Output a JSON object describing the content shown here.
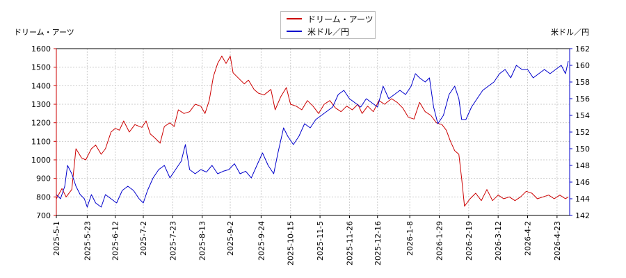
{
  "chart_data": {
    "type": "line",
    "left_axis_title": "ドリーム・アーツ",
    "right_axis_title": "米ドル／円",
    "x_ticks": [
      "2025-5-1",
      "2025-5-23",
      "2025-6-12",
      "2025-7-2",
      "2025-7-23",
      "2025-8-13",
      "2025-9-2",
      "2025-9-24",
      "2025-10-15",
      "2025-11-5",
      "2025-11-26",
      "2025-12-16",
      "2026-1-8",
      "2026-1-29",
      "2026-2-19",
      "2026-3-12",
      "2026-4-2",
      "2026-4-23"
    ],
    "x_range": [
      "2025-5-1",
      "2026-5-2"
    ],
    "y_left": {
      "min": 700,
      "max": 1600,
      "ticks": [
        700,
        800,
        900,
        1000,
        1100,
        1200,
        1300,
        1400,
        1500,
        1600
      ]
    },
    "y_right": {
      "min": 142,
      "max": 162,
      "ticks": [
        142,
        144,
        146,
        148,
        150,
        152,
        154,
        156,
        158,
        160,
        162
      ]
    },
    "grid": true,
    "legend_position": "top-center",
    "series": [
      {
        "name": "ドリーム・アーツ",
        "axis": "left",
        "color": "#cc0000",
        "points": [
          [
            "2025-5-1",
            790
          ],
          [
            "2025-5-5",
            845
          ],
          [
            "2025-5-8",
            800
          ],
          [
            "2025-5-12",
            840
          ],
          [
            "2025-5-15",
            1060
          ],
          [
            "2025-5-19",
            1010
          ],
          [
            "2025-5-22",
            1000
          ],
          [
            "2025-5-26",
            1060
          ],
          [
            "2025-5-29",
            1080
          ],
          [
            "2025-6-2",
            1030
          ],
          [
            "2025-6-5",
            1060
          ],
          [
            "2025-6-9",
            1150
          ],
          [
            "2025-6-12",
            1170
          ],
          [
            "2025-6-15",
            1160
          ],
          [
            "2025-6-18",
            1210
          ],
          [
            "2025-6-22",
            1150
          ],
          [
            "2025-6-26",
            1190
          ],
          [
            "2025-7-1",
            1175
          ],
          [
            "2025-7-4",
            1210
          ],
          [
            "2025-7-7",
            1140
          ],
          [
            "2025-7-10",
            1120
          ],
          [
            "2025-7-14",
            1090
          ],
          [
            "2025-7-17",
            1180
          ],
          [
            "2025-7-21",
            1200
          ],
          [
            "2025-7-24",
            1180
          ],
          [
            "2025-7-27",
            1270
          ],
          [
            "2025-7-31",
            1250
          ],
          [
            "2025-8-4",
            1260
          ],
          [
            "2025-8-8",
            1300
          ],
          [
            "2025-8-12",
            1290
          ],
          [
            "2025-8-15",
            1250
          ],
          [
            "2025-8-18",
            1320
          ],
          [
            "2025-8-21",
            1450
          ],
          [
            "2025-8-24",
            1520
          ],
          [
            "2025-8-27",
            1560
          ],
          [
            "2025-8-30",
            1520
          ],
          [
            "2025-9-2",
            1560
          ],
          [
            "2025-9-4",
            1470
          ],
          [
            "2025-9-8",
            1440
          ],
          [
            "2025-9-12",
            1410
          ],
          [
            "2025-9-15",
            1430
          ],
          [
            "2025-9-19",
            1380
          ],
          [
            "2025-9-22",
            1360
          ],
          [
            "2025-9-26",
            1350
          ],
          [
            "2025-10-1",
            1380
          ],
          [
            "2025-10-4",
            1270
          ],
          [
            "2025-10-8",
            1340
          ],
          [
            "2025-10-12",
            1390
          ],
          [
            "2025-10-15",
            1300
          ],
          [
            "2025-10-19",
            1290
          ],
          [
            "2025-10-23",
            1270
          ],
          [
            "2025-10-27",
            1320
          ],
          [
            "2025-10-31",
            1290
          ],
          [
            "2025-11-4",
            1250
          ],
          [
            "2025-11-8",
            1300
          ],
          [
            "2025-11-12",
            1320
          ],
          [
            "2025-11-16",
            1280
          ],
          [
            "2025-11-20",
            1260
          ],
          [
            "2025-11-24",
            1290
          ],
          [
            "2025-11-28",
            1270
          ],
          [
            "2025-12-2",
            1300
          ],
          [
            "2025-12-5",
            1250
          ],
          [
            "2025-12-9",
            1290
          ],
          [
            "2025-12-13",
            1260
          ],
          [
            "2025-12-17",
            1320
          ],
          [
            "2025-12-21",
            1300
          ],
          [
            "2025-12-26",
            1330
          ],
          [
            "2025-12-30",
            1310
          ],
          [
            "2026-1-3",
            1280
          ],
          [
            "2026-1-7",
            1230
          ],
          [
            "2026-1-11",
            1220
          ],
          [
            "2026-1-15",
            1310
          ],
          [
            "2026-1-19",
            1260
          ],
          [
            "2026-1-23",
            1240
          ],
          [
            "2026-1-27",
            1200
          ],
          [
            "2026-1-31",
            1190
          ],
          [
            "2026-2-3",
            1160
          ],
          [
            "2026-2-6",
            1100
          ],
          [
            "2026-2-9",
            1050
          ],
          [
            "2026-2-12",
            1030
          ],
          [
            "2026-2-14",
            900
          ],
          [
            "2026-2-16",
            750
          ],
          [
            "2026-2-20",
            790
          ],
          [
            "2026-2-24",
            820
          ],
          [
            "2026-2-28",
            780
          ],
          [
            "2026-3-4",
            840
          ],
          [
            "2026-3-8",
            780
          ],
          [
            "2026-3-12",
            810
          ],
          [
            "2026-3-16",
            790
          ],
          [
            "2026-3-20",
            800
          ],
          [
            "2026-3-24",
            780
          ],
          [
            "2026-3-28",
            800
          ],
          [
            "2026-4-1",
            830
          ],
          [
            "2026-4-5",
            820
          ],
          [
            "2026-4-9",
            790
          ],
          [
            "2026-4-13",
            800
          ],
          [
            "2026-4-17",
            810
          ],
          [
            "2026-4-21",
            790
          ],
          [
            "2026-4-25",
            810
          ],
          [
            "2026-4-29",
            790
          ],
          [
            "2026-5-1",
            800
          ]
        ]
      },
      {
        "name": "米ドル／円",
        "axis": "right",
        "color": "#0000cc",
        "points": [
          [
            "2025-5-1",
            144.5
          ],
          [
            "2025-5-4",
            144.0
          ],
          [
            "2025-5-7",
            145.5
          ],
          [
            "2025-5-9",
            148.0
          ],
          [
            "2025-5-12",
            147.0
          ],
          [
            "2025-5-15",
            145.5
          ],
          [
            "2025-5-18",
            144.5
          ],
          [
            "2025-5-21",
            144.0
          ],
          [
            "2025-5-23",
            143.0
          ],
          [
            "2025-5-26",
            144.5
          ],
          [
            "2025-5-29",
            143.5
          ],
          [
            "2025-6-2",
            143.0
          ],
          [
            "2025-6-5",
            144.5
          ],
          [
            "2025-6-9",
            144.0
          ],
          [
            "2025-6-13",
            143.5
          ],
          [
            "2025-6-17",
            145.0
          ],
          [
            "2025-6-21",
            145.5
          ],
          [
            "2025-6-25",
            145.0
          ],
          [
            "2025-6-29",
            144.0
          ],
          [
            "2025-7-2",
            143.5
          ],
          [
            "2025-7-5",
            145.0
          ],
          [
            "2025-7-9",
            146.5
          ],
          [
            "2025-7-13",
            147.5
          ],
          [
            "2025-7-17",
            148.0
          ],
          [
            "2025-7-21",
            146.5
          ],
          [
            "2025-7-25",
            147.5
          ],
          [
            "2025-7-29",
            148.5
          ],
          [
            "2025-8-1",
            150.5
          ],
          [
            "2025-8-4",
            147.5
          ],
          [
            "2025-8-8",
            147.0
          ],
          [
            "2025-8-12",
            147.5
          ],
          [
            "2025-8-16",
            147.2
          ],
          [
            "2025-8-20",
            148.0
          ],
          [
            "2025-8-24",
            147.0
          ],
          [
            "2025-8-28",
            147.3
          ],
          [
            "2025-9-1",
            147.5
          ],
          [
            "2025-9-5",
            148.2
          ],
          [
            "2025-9-9",
            147.0
          ],
          [
            "2025-9-13",
            147.3
          ],
          [
            "2025-9-17",
            146.5
          ],
          [
            "2025-9-21",
            148.0
          ],
          [
            "2025-9-25",
            149.5
          ],
          [
            "2025-9-29",
            148.0
          ],
          [
            "2025-10-3",
            147.0
          ],
          [
            "2025-10-6",
            149.5
          ],
          [
            "2025-10-10",
            152.5
          ],
          [
            "2025-10-13",
            151.5
          ],
          [
            "2025-10-17",
            150.5
          ],
          [
            "2025-10-21",
            151.5
          ],
          [
            "2025-10-25",
            153.0
          ],
          [
            "2025-10-29",
            152.5
          ],
          [
            "2025-11-2",
            153.5
          ],
          [
            "2025-11-6",
            154.0
          ],
          [
            "2025-11-10",
            154.5
          ],
          [
            "2025-11-14",
            155.0
          ],
          [
            "2025-11-18",
            156.5
          ],
          [
            "2025-11-22",
            157.0
          ],
          [
            "2025-11-26",
            156.0
          ],
          [
            "2025-11-30",
            155.5
          ],
          [
            "2025-12-4",
            155.0
          ],
          [
            "2025-12-8",
            156.0
          ],
          [
            "2025-12-12",
            155.5
          ],
          [
            "2025-12-16",
            155.0
          ],
          [
            "2025-12-20",
            157.5
          ],
          [
            "2025-12-24",
            156.0
          ],
          [
            "2025-12-28",
            156.5
          ],
          [
            "2026-1-1",
            157.0
          ],
          [
            "2026-1-5",
            156.5
          ],
          [
            "2026-1-9",
            157.5
          ],
          [
            "2026-1-12",
            159.0
          ],
          [
            "2026-1-15",
            158.5
          ],
          [
            "2026-1-19",
            158.0
          ],
          [
            "2026-1-22",
            158.5
          ],
          [
            "2026-1-25",
            155.0
          ],
          [
            "2026-1-28",
            153.0
          ],
          [
            "2026-2-1",
            154.0
          ],
          [
            "2026-2-5",
            156.5
          ],
          [
            "2026-2-9",
            157.5
          ],
          [
            "2026-2-12",
            156.0
          ],
          [
            "2026-2-14",
            153.5
          ],
          [
            "2026-2-17",
            153.5
          ],
          [
            "2026-2-21",
            155.0
          ],
          [
            "2026-2-25",
            156.0
          ],
          [
            "2026-3-1",
            157.0
          ],
          [
            "2026-3-5",
            157.5
          ],
          [
            "2026-3-9",
            158.0
          ],
          [
            "2026-3-13",
            159.0
          ],
          [
            "2026-3-17",
            159.5
          ],
          [
            "2026-3-21",
            158.5
          ],
          [
            "2026-3-25",
            160.0
          ],
          [
            "2026-3-29",
            159.5
          ],
          [
            "2026-4-2",
            159.5
          ],
          [
            "2026-4-6",
            158.5
          ],
          [
            "2026-4-10",
            159.0
          ],
          [
            "2026-4-14",
            159.5
          ],
          [
            "2026-4-18",
            159.0
          ],
          [
            "2026-4-22",
            159.5
          ],
          [
            "2026-4-26",
            160.0
          ],
          [
            "2026-4-29",
            159.0
          ],
          [
            "2026-5-1",
            160.5
          ]
        ]
      }
    ]
  }
}
